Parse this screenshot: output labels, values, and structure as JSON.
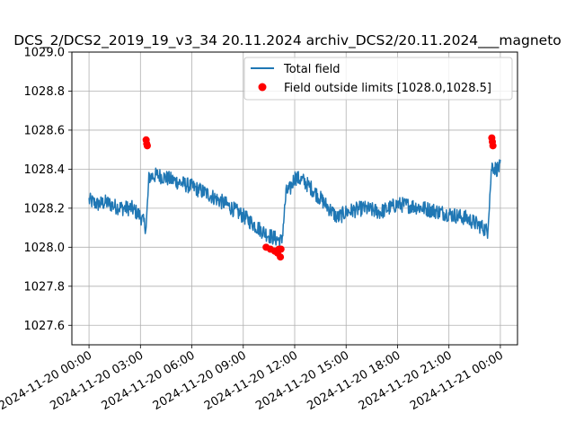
{
  "chart_data": {
    "type": "line",
    "title": "DCS_2/DCS2_2019_19_v3_34 20.11.2024 archiv_DCS2/20.11.2024___magneto",
    "xlabel": "",
    "ylabel": "",
    "xlim": [
      "2024-11-19T23:00",
      "2024-11-21T01:00"
    ],
    "ylim": [
      1027.5,
      1029.0
    ],
    "x_ticks": [
      "2024-11-20 00:00",
      "2024-11-20 03:00",
      "2024-11-20 06:00",
      "2024-11-20 09:00",
      "2024-11-20 12:00",
      "2024-11-20 15:00",
      "2024-11-20 18:00",
      "2024-11-20 21:00",
      "2024-11-21 00:00"
    ],
    "y_ticks": [
      1027.6,
      1027.8,
      1028.0,
      1028.2,
      1028.4,
      1028.6,
      1028.8,
      1029.0
    ],
    "grid": true,
    "legend_position": "top-right",
    "series": [
      {
        "name": "Total field",
        "kind": "line",
        "color": "#1f77b4",
        "x": [
          "2024-11-20T00:00",
          "2024-11-20T00:30",
          "2024-11-20T01:00",
          "2024-11-20T01:30",
          "2024-11-20T02:00",
          "2024-11-20T02:30",
          "2024-11-20T03:00",
          "2024-11-20T03:20",
          "2024-11-20T03:30",
          "2024-11-20T04:00",
          "2024-11-20T05:00",
          "2024-11-20T06:00",
          "2024-11-20T07:00",
          "2024-11-20T08:00",
          "2024-11-20T09:00",
          "2024-11-20T10:00",
          "2024-11-20T10:30",
          "2024-11-20T11:00",
          "2024-11-20T11:15",
          "2024-11-20T11:30",
          "2024-11-20T11:45",
          "2024-11-20T12:00",
          "2024-11-20T12:30",
          "2024-11-20T13:00",
          "2024-11-20T14:00",
          "2024-11-20T14:30",
          "2024-11-20T15:00",
          "2024-11-20T16:00",
          "2024-11-20T17:00",
          "2024-11-20T18:00",
          "2024-11-20T19:00",
          "2024-11-20T20:00",
          "2024-11-20T21:00",
          "2024-11-20T22:00",
          "2024-11-20T23:00",
          "2024-11-20T23:15",
          "2024-11-20T23:30",
          "2024-11-20T23:45",
          "2024-11-21T00:00"
        ],
        "y": [
          1028.24,
          1028.22,
          1028.23,
          1028.21,
          1028.2,
          1028.2,
          1028.16,
          1028.1,
          1028.36,
          1028.37,
          1028.34,
          1028.31,
          1028.27,
          1028.22,
          1028.16,
          1028.09,
          1028.06,
          1028.04,
          1028.03,
          1028.28,
          1028.3,
          1028.36,
          1028.34,
          1028.3,
          1028.2,
          1028.15,
          1028.18,
          1028.2,
          1028.18,
          1028.22,
          1028.21,
          1028.19,
          1028.17,
          1028.15,
          1028.1,
          1028.08,
          1028.42,
          1028.4,
          1028.41
        ]
      },
      {
        "name": "Field outside limits [1028.0,1028.5]",
        "kind": "scatter",
        "color": "#ff0000",
        "x": [
          "2024-11-20T03:20",
          "2024-11-20T03:22",
          "2024-11-20T03:24",
          "2024-11-20T10:20",
          "2024-11-20T10:35",
          "2024-11-20T10:50",
          "2024-11-20T11:00",
          "2024-11-20T11:05",
          "2024-11-20T11:10",
          "2024-11-20T11:12",
          "2024-11-20T23:30",
          "2024-11-20T23:32",
          "2024-11-20T23:34"
        ],
        "y": [
          1028.55,
          1028.53,
          1028.52,
          1028.0,
          1027.99,
          1027.98,
          1027.97,
          1027.99,
          1027.95,
          1027.99,
          1028.56,
          1028.54,
          1028.52
        ]
      }
    ]
  }
}
